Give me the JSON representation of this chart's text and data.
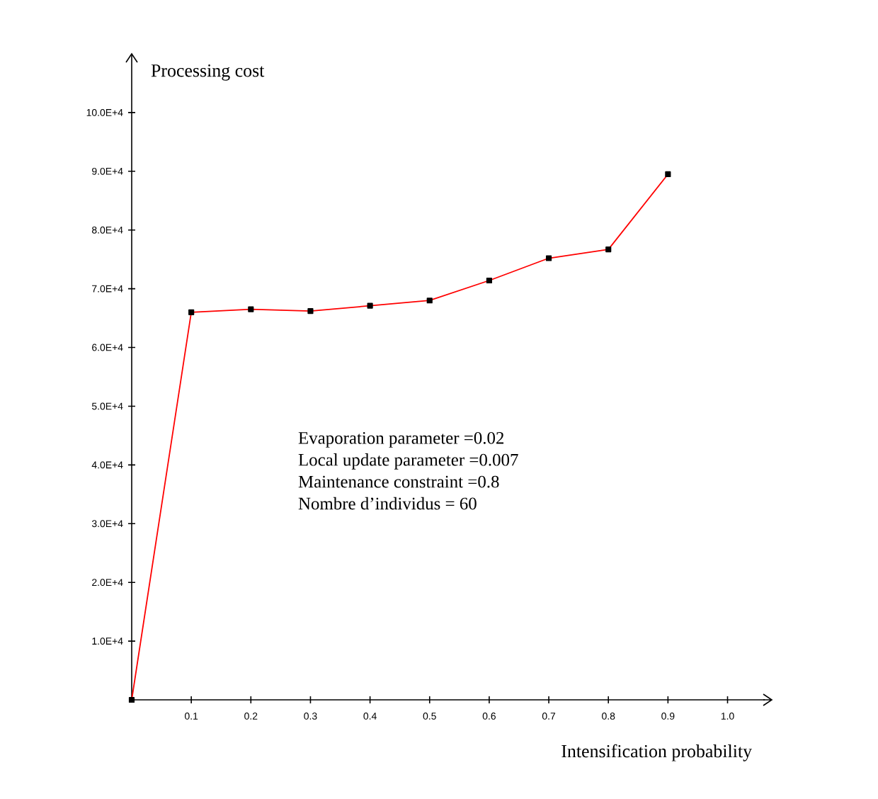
{
  "chart_data": {
    "type": "line",
    "xlabel": "Intensification probability",
    "ylabel": "Processing cost",
    "x": [
      0,
      0.1,
      0.2,
      0.3,
      0.4,
      0.5,
      0.6,
      0.7,
      0.8,
      0.9
    ],
    "series": [
      {
        "color": "#ff0000",
        "values": [
          0,
          66000,
          66500,
          66200,
          67100,
          68000,
          71400,
          75200,
          76700,
          89500
        ]
      }
    ],
    "marker": "square",
    "xlim": [
      0,
      1.06
    ],
    "ylim": [
      0,
      110000
    ],
    "xticks": [
      0.1,
      0.2,
      0.3,
      0.4,
      0.5,
      0.6,
      0.7,
      0.8,
      0.9,
      {
        "value": 1.0,
        "label": "1.0"
      }
    ],
    "yticks": [
      {
        "value": 10000,
        "label": "1.0E+4"
      },
      {
        "value": 20000,
        "label": "2.0E+4"
      },
      {
        "value": 30000,
        "label": "3.0E+4"
      },
      {
        "value": 40000,
        "label": "4.0E+4"
      },
      {
        "value": 50000,
        "label": "5.0E+4"
      },
      {
        "value": 60000,
        "label": "6.0E+4"
      },
      {
        "value": 70000,
        "label": "7.0E+4"
      },
      {
        "value": 80000,
        "label": "8.0E+4"
      },
      {
        "value": 90000,
        "label": "9.0E+4"
      },
      {
        "value": 100000,
        "label": "10.0E+4"
      }
    ],
    "annotations": [
      "Evaporation parameter  =0.02",
      "Local update parameter  =0.007",
      "Maintenance constraint =0.8",
      "Nombre d’individus = 60"
    ]
  }
}
